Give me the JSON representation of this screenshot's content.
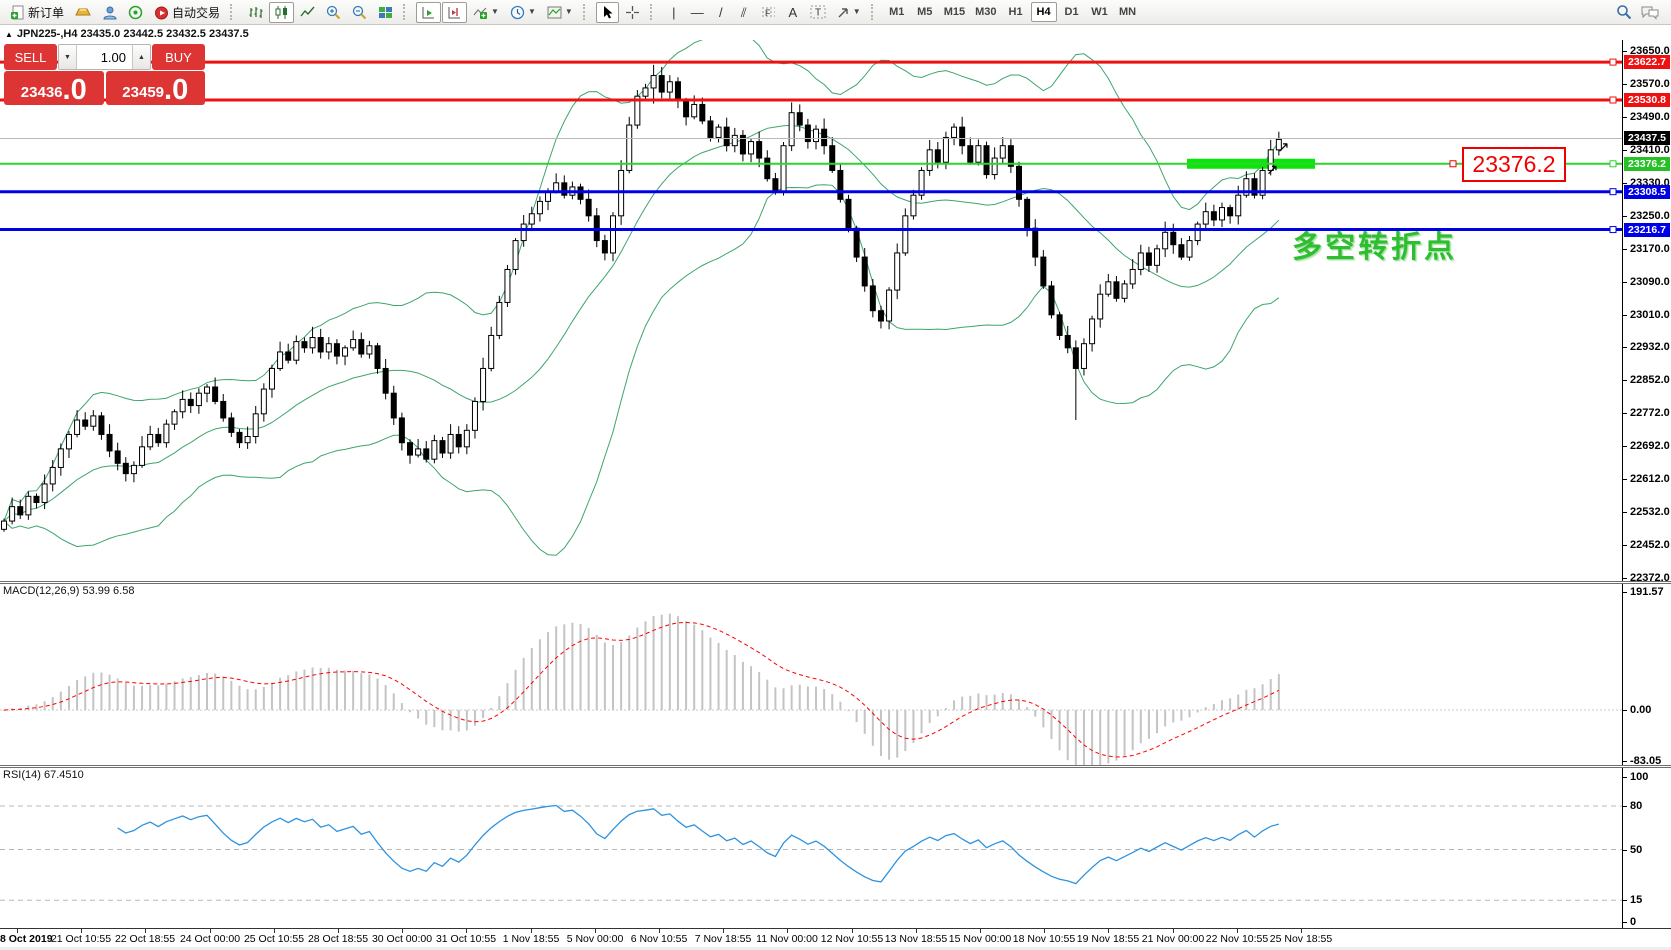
{
  "toolbar": {
    "new_order_label": "新订单",
    "auto_trading_label": "自动交易",
    "timeframes": [
      "M1",
      "M5",
      "M15",
      "M30",
      "H1",
      "H4",
      "D1",
      "W1",
      "MN"
    ],
    "active_timeframe": "H4",
    "tool_glyphs": {
      "vertical_line": "|",
      "horizontal_line": "—",
      "trend_line": "/",
      "channel": "⫽",
      "fibonacci": "F",
      "text": "A",
      "text_label": "T"
    }
  },
  "chart_header": {
    "title": "JPN225-,H4 23435.0 23442.5 23432.5 23437.5",
    "collapse_glyph": "▲"
  },
  "order_panel": {
    "sell_label": "SELL",
    "buy_label": "BUY",
    "volume": "1.00",
    "sell_price": "23436",
    "sell_price_big": ".0",
    "buy_price": "23459",
    "buy_price_big": ".0"
  },
  "annotations": {
    "price_tag": "23376.2",
    "turning_point": "多空转折点"
  },
  "chart_data": {
    "type": "candlestick",
    "symbol_period": "JPN225-,H4",
    "ohlc_header": {
      "open": "23435.0",
      "high": "23442.5",
      "low": "23432.5",
      "close": "23437.5"
    },
    "y_axis_ticks": [
      "23650.0",
      "23570.0",
      "23490.0",
      "23410.0",
      "23330.0",
      "23250.0",
      "23170.0",
      "23090.0",
      "23010.0",
      "22932.0",
      "22852.0",
      "22772.0",
      "22692.0",
      "22612.0",
      "22532.0",
      "22452.0",
      "22372.0"
    ],
    "y_range": [
      22372.0,
      23650.0
    ],
    "current_price": {
      "value": 23437.5,
      "label": "23437.5",
      "badge_color": "#000000"
    },
    "levels": [
      {
        "value": 23622.7,
        "label": "23622.7",
        "color": "#ee1111",
        "width": 3,
        "kind": "resistance"
      },
      {
        "value": 23530.8,
        "label": "23530.8",
        "color": "#ee1111",
        "width": 3,
        "kind": "resistance"
      },
      {
        "value": 23376.2,
        "label": "23376.2",
        "color": "#2ed32e",
        "width": 2,
        "kind": "pivot"
      },
      {
        "value": 23308.5,
        "label": "23308.5",
        "color": "#0000e6",
        "width": 3,
        "kind": "support"
      },
      {
        "value": 23216.7,
        "label": "23216.7",
        "color": "#0000e6",
        "width": 3,
        "kind": "support"
      }
    ],
    "highlight_bar": {
      "level": 23376.2,
      "color": "#0ae60a"
    },
    "closes": [
      22510,
      22545,
      22525,
      22570,
      22555,
      22600,
      22640,
      22685,
      22720,
      22755,
      22740,
      22765,
      22720,
      22680,
      22650,
      22625,
      22645,
      22690,
      22720,
      22700,
      22745,
      22775,
      22805,
      22790,
      22820,
      22835,
      22800,
      22760,
      22725,
      22700,
      22715,
      22770,
      22830,
      22880,
      22920,
      22900,
      22945,
      22930,
      22955,
      22920,
      22940,
      22910,
      22930,
      22950,
      22915,
      22935,
      22880,
      22820,
      22760,
      22700,
      22670,
      22685,
      22660,
      22705,
      22675,
      22720,
      22690,
      22730,
      22800,
      22880,
      22960,
      23040,
      23120,
      23190,
      23230,
      23255,
      23285,
      23310,
      23330,
      23300,
      23320,
      23290,
      23250,
      23190,
      23160,
      23250,
      23360,
      23470,
      23540,
      23560,
      23590,
      23550,
      23575,
      23530,
      23490,
      23520,
      23480,
      23440,
      23465,
      23420,
      23445,
      23400,
      23430,
      23390,
      23340,
      23310,
      23420,
      23500,
      23470,
      23430,
      23460,
      23420,
      23360,
      23290,
      23220,
      23150,
      23080,
      23020,
      22995,
      23070,
      23160,
      23250,
      23300,
      23360,
      23410,
      23380,
      23440,
      23465,
      23420,
      23380,
      23420,
      23350,
      23390,
      23420,
      23370,
      23290,
      23220,
      23150,
      23080,
      23010,
      22960,
      22930,
      22880,
      22940,
      23000,
      23060,
      23090,
      23050,
      23085,
      23120,
      23160,
      23130,
      23170,
      23210,
      23180,
      23150,
      23190,
      23230,
      23260,
      23240,
      23270,
      23250,
      23300,
      23340,
      23300,
      23360,
      23410,
      23435
    ],
    "wick_spikes": {
      "132": 110,
      "80": 25
    },
    "bands_color": "#3da56b",
    "macd": {
      "label": "MACD(12,26,9) 53.99 6.58",
      "fast": 12,
      "slow": 26,
      "signal": 9,
      "value": 53.99,
      "signal_value": 6.58,
      "axis_labels": [
        "191.57",
        "0.00",
        "-83.05"
      ],
      "axis_values": [
        191.57,
        0.0,
        -83.05
      ],
      "histogram_color": "#c4c4c4",
      "signal_color": "#ff0000"
    },
    "rsi": {
      "label": "RSI(14) 67.4510",
      "period": 14,
      "value": 67.451,
      "axis_labels": [
        "100",
        "80",
        "50",
        "15",
        "0"
      ],
      "axis_values": [
        100,
        80,
        50,
        15,
        0
      ],
      "level_lines": [
        80,
        50,
        15
      ],
      "line_color": "#2e93df"
    },
    "x_labels": [
      "8 Oct 2019",
      "21 Oct 10:55",
      "22 Oct 18:55",
      "24 Oct 00:00",
      "25 Oct 10:55",
      "28 Oct 18:55",
      "30 Oct 00:00",
      "31 Oct 10:55",
      "1 Nov 18:55",
      "5 Nov 00:00",
      "6 Nov 10:55",
      "7 Nov 18:55",
      "11 Nov 00:00",
      "12 Nov 10:55",
      "13 Nov 18:55",
      "15 Nov 00:00",
      "18 Nov 10:55",
      "19 Nov 18:55",
      "21 Nov 00:00",
      "22 Nov 10:55",
      "25 Nov 18:55"
    ]
  }
}
